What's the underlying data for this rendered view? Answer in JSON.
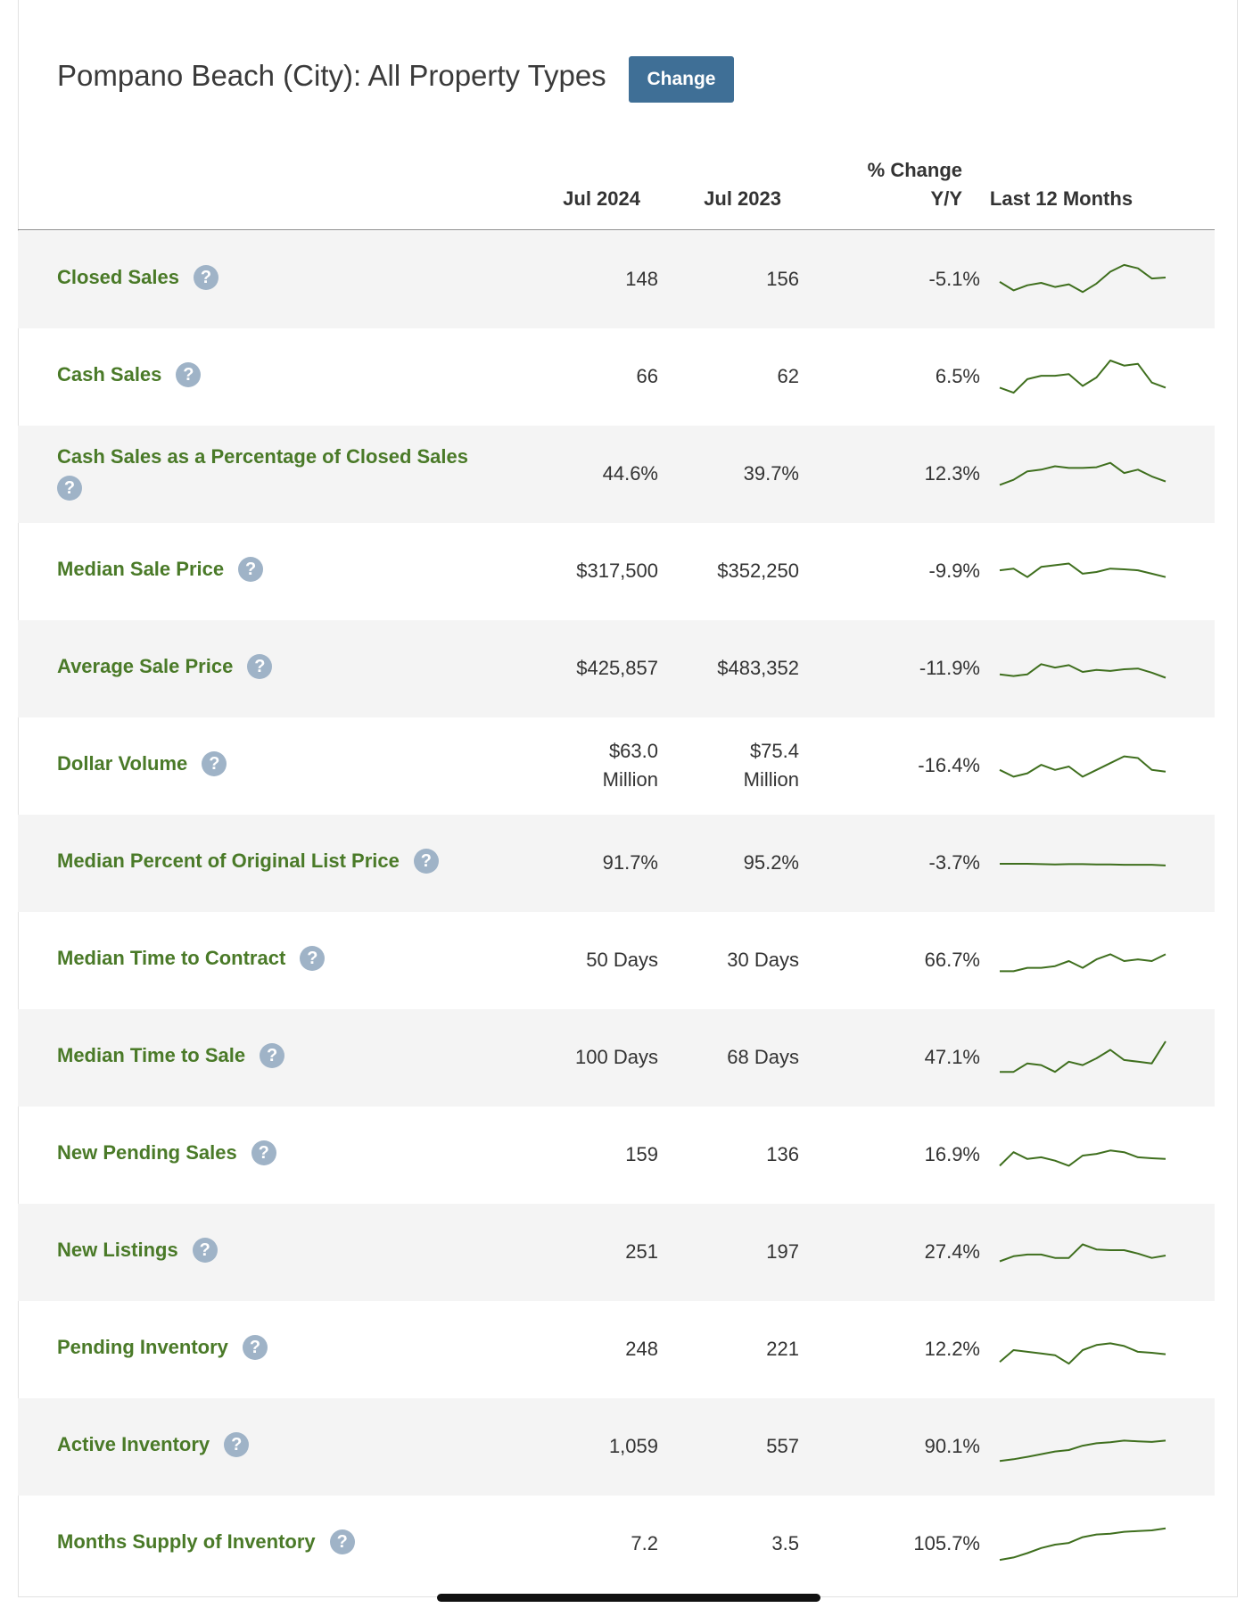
{
  "header": {
    "title": "Pompano Beach (City): All Property Types",
    "change_label": "Change"
  },
  "columns": {
    "col1": "Jul 2024",
    "col2": "Jul 2023",
    "col3_line1": "% Change",
    "col3_line2": "Y/Y",
    "col4": "Last 12 Months"
  },
  "help_glyph": "?",
  "colors": {
    "metric_green": "#4a7a28",
    "sparkline": "#3f6f1e",
    "button_blue": "#3f6f96",
    "help_icon": "#9fb3c7"
  },
  "rows": [
    {
      "label": "Closed Sales",
      "v2024": "148",
      "v2023": "156",
      "change": "-5.1%",
      "trend": [
        0.45,
        0.2,
        0.35,
        0.42,
        0.3,
        0.38,
        0.15,
        0.4,
        0.75,
        0.95,
        0.85,
        0.55,
        0.58
      ]
    },
    {
      "label": "Cash Sales",
      "v2024": "66",
      "v2023": "62",
      "change": "6.5%",
      "trend": [
        0.2,
        0.05,
        0.45,
        0.55,
        0.55,
        0.6,
        0.25,
        0.5,
        1.0,
        0.85,
        0.9,
        0.35,
        0.2
      ]
    },
    {
      "label": "Cash Sales as a Percentage of Closed Sales",
      "v2024": "44.6%",
      "v2023": "39.7%",
      "change": "12.3%",
      "trend": [
        0.2,
        0.35,
        0.6,
        0.65,
        0.75,
        0.7,
        0.7,
        0.72,
        0.85,
        0.55,
        0.65,
        0.45,
        0.3
      ]
    },
    {
      "label": "Median Sale Price",
      "v2024": "$317,500",
      "v2023": "$352,250",
      "change": "-9.9%",
      "trend": [
        0.55,
        0.6,
        0.35,
        0.65,
        0.7,
        0.75,
        0.45,
        0.5,
        0.6,
        0.58,
        0.55,
        0.45,
        0.35
      ]
    },
    {
      "label": "Average Sale Price",
      "v2024": "$425,857",
      "v2023": "$483,352",
      "change": "-11.9%",
      "trend": [
        0.35,
        0.3,
        0.35,
        0.65,
        0.55,
        0.62,
        0.42,
        0.48,
        0.45,
        0.5,
        0.52,
        0.4,
        0.25
      ]
    },
    {
      "label": "Dollar Volume",
      "v2024": "$63.0 Million",
      "v2023": "$75.4 Million",
      "change": "-16.4%",
      "trend": [
        0.4,
        0.2,
        0.3,
        0.55,
        0.4,
        0.5,
        0.2,
        0.4,
        0.6,
        0.8,
        0.75,
        0.4,
        0.35
      ]
    },
    {
      "label": "Median Percent of Original List Price",
      "v2024": "91.7%",
      "v2023": "95.2%",
      "change": "-3.7%",
      "trend": [
        0.5,
        0.5,
        0.5,
        0.49,
        0.48,
        0.49,
        0.49,
        0.48,
        0.48,
        0.47,
        0.47,
        0.47,
        0.45
      ]
    },
    {
      "label": "Median Time to Contract",
      "v2024": "50 Days",
      "v2023": "30 Days",
      "change": "66.7%",
      "trend": [
        0.2,
        0.2,
        0.3,
        0.3,
        0.35,
        0.5,
        0.3,
        0.55,
        0.7,
        0.5,
        0.55,
        0.5,
        0.7
      ]
    },
    {
      "label": "Median Time to Sale",
      "v2024": "100 Days",
      "v2023": "68 Days",
      "change": "47.1%",
      "trend": [
        0.1,
        0.1,
        0.35,
        0.3,
        0.1,
        0.4,
        0.3,
        0.5,
        0.75,
        0.45,
        0.4,
        0.35,
        1.0
      ]
    },
    {
      "label": "New Pending Sales",
      "v2024": "159",
      "v2023": "136",
      "change": "16.9%",
      "trend": [
        0.2,
        0.6,
        0.4,
        0.45,
        0.35,
        0.2,
        0.5,
        0.55,
        0.65,
        0.6,
        0.45,
        0.42,
        0.4
      ]
    },
    {
      "label": "New Listings",
      "v2024": "251",
      "v2023": "197",
      "change": "27.4%",
      "trend": [
        0.25,
        0.4,
        0.45,
        0.45,
        0.35,
        0.35,
        0.75,
        0.6,
        0.58,
        0.58,
        0.48,
        0.35,
        0.42
      ]
    },
    {
      "label": "Pending Inventory",
      "v2024": "248",
      "v2023": "221",
      "change": "12.2%",
      "trend": [
        0.15,
        0.5,
        0.45,
        0.4,
        0.35,
        0.1,
        0.5,
        0.65,
        0.7,
        0.62,
        0.45,
        0.42,
        0.38
      ]
    },
    {
      "label": "Active Inventory",
      "v2024": "1,059",
      "v2023": "557",
      "change": "90.1%",
      "trend": [
        0.1,
        0.15,
        0.22,
        0.3,
        0.38,
        0.42,
        0.55,
        0.62,
        0.65,
        0.7,
        0.68,
        0.66,
        0.7
      ]
    },
    {
      "label": "Months Supply of Inventory",
      "v2024": "7.2",
      "v2023": "3.5",
      "change": "105.7%",
      "trend": [
        0.05,
        0.12,
        0.25,
        0.4,
        0.5,
        0.55,
        0.72,
        0.8,
        0.82,
        0.88,
        0.9,
        0.92,
        0.98
      ]
    }
  ]
}
